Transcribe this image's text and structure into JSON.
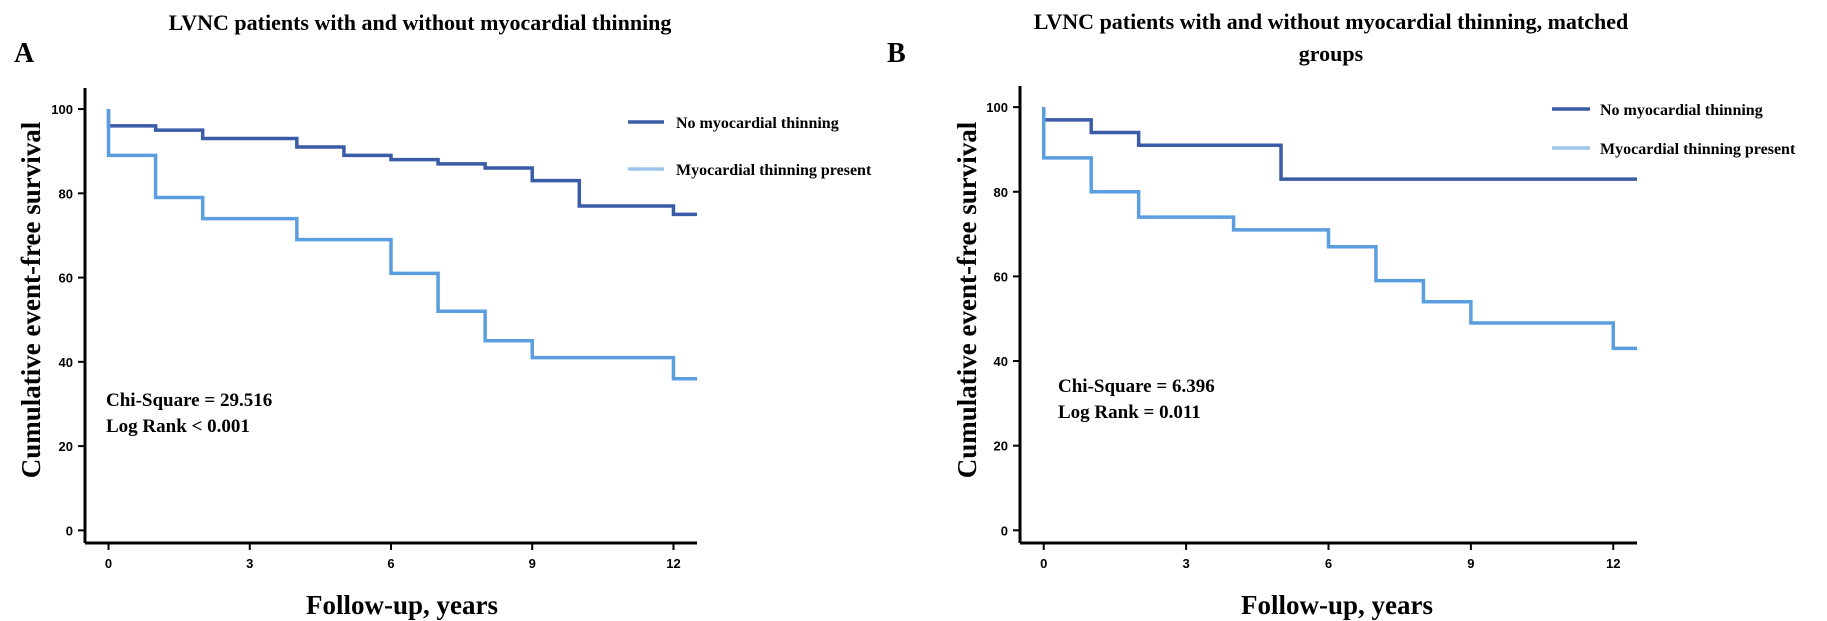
{
  "colors": {
    "no_thinning": "#3a5ca6",
    "thinning_present": "#5b9ee0",
    "legend_thinning_present": "#9dc6ec",
    "axis": "#000000"
  },
  "panels": [
    {
      "letter": "A",
      "title_lines": [
        "LVNC patients  with and without myocardial thinning"
      ],
      "annotations": [
        "Chi-Square = 29.516",
        "Log Rank < 0.001"
      ],
      "legend": [
        "No myocardial thinning",
        "Myocardial thinning present"
      ]
    },
    {
      "letter": "B",
      "title_lines": [
        "LVNC patients with and without myocardial thinning, matched",
        "groups"
      ],
      "annotations": [
        "Chi-Square = 6.396",
        "Log Rank = 0.011"
      ],
      "legend": [
        "No myocardial thinning",
        "Myocardial thinning present"
      ]
    }
  ],
  "chart_data": [
    {
      "type": "line",
      "step": true,
      "xlabel": "Follow-up, years",
      "ylabel": "Cumulative event-free survival",
      "xlim": [
        -0.5,
        12.5
      ],
      "ylim": [
        -3,
        105
      ],
      "xticks": [
        0,
        3,
        6,
        9,
        12
      ],
      "yticks": [
        0,
        20,
        40,
        60,
        80,
        100
      ],
      "series": [
        {
          "name": "No myocardial thinning",
          "x": [
            0,
            0,
            1,
            2,
            4,
            5,
            6,
            7,
            8,
            9,
            10,
            12,
            12.5
          ],
          "y": [
            100,
            96,
            95,
            93,
            91,
            89,
            88,
            87,
            86,
            83,
            77,
            75,
            75
          ]
        },
        {
          "name": "Myocardial thinning present",
          "x": [
            0,
            0,
            1,
            2,
            4,
            6,
            7,
            8,
            9,
            12,
            12.5
          ],
          "y": [
            100,
            89,
            79,
            74,
            69,
            61,
            52,
            45,
            41,
            36,
            36
          ]
        }
      ]
    },
    {
      "type": "line",
      "step": true,
      "xlabel": "Follow-up, years",
      "ylabel": "Cumulative event-free survival",
      "xlim": [
        -0.5,
        12.5
      ],
      "ylim": [
        -3,
        105
      ],
      "xticks": [
        0,
        3,
        6,
        9,
        12
      ],
      "yticks": [
        0,
        20,
        40,
        60,
        80,
        100
      ],
      "series": [
        {
          "name": "No myocardial thinning",
          "x": [
            0,
            0,
            1,
            2,
            5,
            12.5
          ],
          "y": [
            100,
            97,
            94,
            91,
            83,
            83
          ]
        },
        {
          "name": "Myocardial thinning present",
          "x": [
            0,
            0,
            1,
            2,
            4,
            6,
            7,
            8,
            9,
            12,
            12.5
          ],
          "y": [
            100,
            88,
            80,
            74,
            71,
            67,
            59,
            54,
            49,
            43,
            43
          ]
        }
      ]
    }
  ]
}
